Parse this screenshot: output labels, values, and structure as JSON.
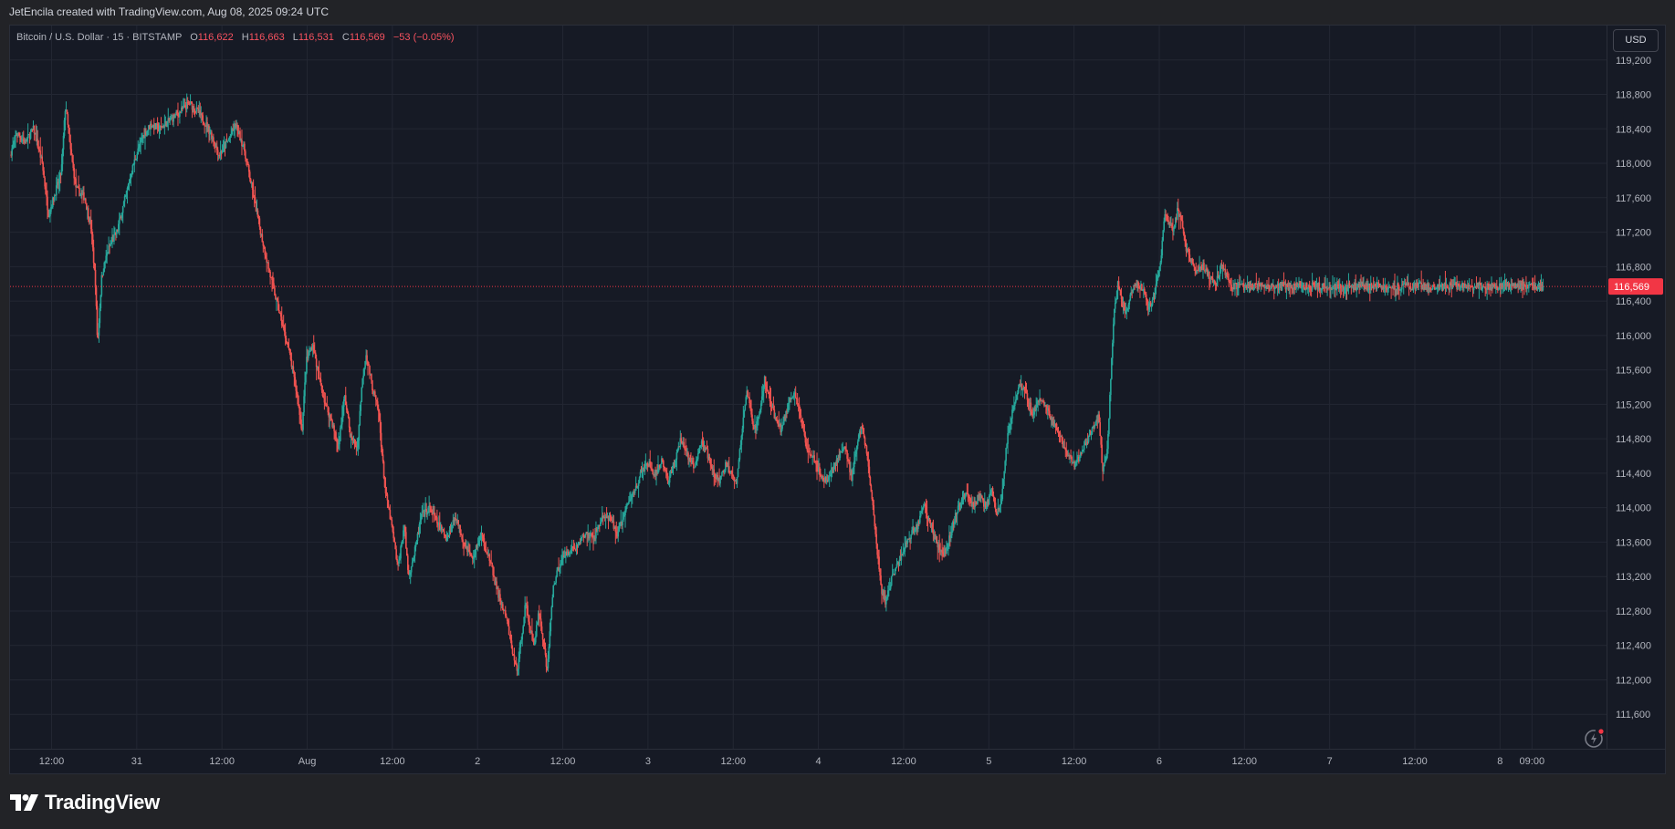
{
  "header": {
    "credit": "JetEncila created with TradingView.com, Aug 08, 2025 09:24 UTC"
  },
  "legend": {
    "symbol": "Bitcoin / U.S. Dollar · 15 · BITSTAMP",
    "open_label": "O",
    "open": "116,622",
    "high_label": "H",
    "high": "116,663",
    "low_label": "L",
    "low": "116,531",
    "close_label": "C",
    "close": "116,569",
    "change": "−53 (−0.05%)"
  },
  "currency_button": "USD",
  "brand": "TradingView",
  "colors": {
    "up": "#26a69a",
    "down": "#ef5350",
    "background": "#161a25",
    "grid": "#232733",
    "price_line": "#f23645"
  },
  "chart_data": {
    "type": "candlestick",
    "interval": "15",
    "exchange": "BITSTAMP",
    "ylim": [
      111200,
      119600
    ],
    "y_ticks": [
      111600,
      112000,
      112400,
      112800,
      113200,
      113600,
      114000,
      114400,
      114800,
      115200,
      115600,
      116000,
      116400,
      116800,
      117200,
      117600,
      118000,
      118400,
      118800,
      119200
    ],
    "y_tick_labels": [
      "111,600",
      "112,000",
      "112,400",
      "112,800",
      "113,200",
      "113,600",
      "114,000",
      "114,400",
      "114,800",
      "115,200",
      "115,600",
      "116,000",
      "116,400",
      "116,800",
      "117,200",
      "117,600",
      "118,000",
      "118,400",
      "118,800",
      "119,200"
    ],
    "current_price": 116569,
    "current_price_label": "116,569",
    "x_ticks": [
      {
        "label": "12:00",
        "t": 1.0
      },
      {
        "label": "31",
        "t": 5.0
      },
      {
        "label": "12:00",
        "t": 9.0
      },
      {
        "label": "Aug",
        "t": 13.0
      },
      {
        "label": "12:00",
        "t": 17.0
      },
      {
        "label": "2",
        "t": 21.0
      },
      {
        "label": "12:00",
        "t": 25.0
      },
      {
        "label": "3",
        "t": 29.0
      },
      {
        "label": "12:00",
        "t": 33.0
      },
      {
        "label": "4",
        "t": 37.0
      },
      {
        "label": "12:00",
        "t": 41.0
      },
      {
        "label": "5",
        "t": 45.0
      },
      {
        "label": "12:00",
        "t": 49.0
      },
      {
        "label": "6",
        "t": 53.0
      },
      {
        "label": "12:00",
        "t": 57.0
      },
      {
        "label": "7",
        "t": 61.0
      },
      {
        "label": "12:00",
        "t": 65.0
      },
      {
        "label": "8",
        "t": 69.0
      },
      {
        "label": "09:00",
        "t": 70.5
      }
    ],
    "x_range": [
      -0.95,
      74.0
    ],
    "end_t": 71.05,
    "price_path": [
      [
        -0.9,
        118100
      ],
      [
        -0.6,
        118350
      ],
      [
        -0.2,
        118250
      ],
      [
        0.2,
        118400
      ],
      [
        0.6,
        118000
      ],
      [
        0.9,
        117400
      ],
      [
        1.2,
        117650
      ],
      [
        1.5,
        117900
      ],
      [
        1.7,
        118700
      ],
      [
        1.9,
        118200
      ],
      [
        2.2,
        117700
      ],
      [
        2.6,
        117600
      ],
      [
        2.9,
        117250
      ],
      [
        3.1,
        116600
      ],
      [
        3.2,
        115900
      ],
      [
        3.4,
        116700
      ],
      [
        3.7,
        117000
      ],
      [
        4.1,
        117200
      ],
      [
        4.5,
        117600
      ],
      [
        4.9,
        118000
      ],
      [
        5.3,
        118300
      ],
      [
        5.7,
        118450
      ],
      [
        6.1,
        118400
      ],
      [
        6.6,
        118500
      ],
      [
        7.1,
        118600
      ],
      [
        7.5,
        118700
      ],
      [
        7.9,
        118600
      ],
      [
        8.3,
        118450
      ],
      [
        8.6,
        118300
      ],
      [
        8.9,
        118100
      ],
      [
        9.3,
        118250
      ],
      [
        9.7,
        118450
      ],
      [
        10.1,
        118150
      ],
      [
        10.5,
        117650
      ],
      [
        10.9,
        117150
      ],
      [
        11.3,
        116700
      ],
      [
        11.8,
        116200
      ],
      [
        12.2,
        115800
      ],
      [
        12.5,
        115400
      ],
      [
        12.8,
        114900
      ],
      [
        13.0,
        115700
      ],
      [
        13.3,
        115900
      ],
      [
        13.6,
        115500
      ],
      [
        13.9,
        115200
      ],
      [
        14.2,
        115000
      ],
      [
        14.5,
        114700
      ],
      [
        14.8,
        115300
      ],
      [
        15.1,
        114800
      ],
      [
        15.4,
        114700
      ],
      [
        15.6,
        115400
      ],
      [
        15.8,
        115800
      ],
      [
        16.1,
        115400
      ],
      [
        16.4,
        115100
      ],
      [
        16.7,
        114200
      ],
      [
        17.0,
        113800
      ],
      [
        17.3,
        113300
      ],
      [
        17.6,
        113800
      ],
      [
        17.8,
        113200
      ],
      [
        18.1,
        113500
      ],
      [
        18.4,
        113900
      ],
      [
        18.8,
        114000
      ],
      [
        19.2,
        113800
      ],
      [
        19.6,
        113650
      ],
      [
        20.0,
        113900
      ],
      [
        20.4,
        113600
      ],
      [
        20.8,
        113400
      ],
      [
        21.2,
        113700
      ],
      [
        21.6,
        113400
      ],
      [
        22.0,
        113000
      ],
      [
        22.4,
        112700
      ],
      [
        22.7,
        112300
      ],
      [
        22.9,
        112100
      ],
      [
        23.1,
        112500
      ],
      [
        23.3,
        112900
      ],
      [
        23.5,
        112600
      ],
      [
        23.7,
        112400
      ],
      [
        23.9,
        112800
      ],
      [
        24.1,
        112500
      ],
      [
        24.3,
        112100
      ],
      [
        24.6,
        113100
      ],
      [
        24.9,
        113350
      ],
      [
        25.3,
        113500
      ],
      [
        25.7,
        113550
      ],
      [
        26.1,
        113700
      ],
      [
        26.5,
        113650
      ],
      [
        26.9,
        113900
      ],
      [
        27.3,
        113850
      ],
      [
        27.6,
        113700
      ],
      [
        27.9,
        113900
      ],
      [
        28.2,
        114100
      ],
      [
        28.5,
        114250
      ],
      [
        28.8,
        114450
      ],
      [
        29.1,
        114500
      ],
      [
        29.4,
        114350
      ],
      [
        29.7,
        114550
      ],
      [
        30.0,
        114300
      ],
      [
        30.3,
        114550
      ],
      [
        30.6,
        114800
      ],
      [
        30.9,
        114600
      ],
      [
        31.2,
        114450
      ],
      [
        31.5,
        114750
      ],
      [
        31.8,
        114650
      ],
      [
        32.1,
        114400
      ],
      [
        32.4,
        114300
      ],
      [
        32.7,
        114500
      ],
      [
        33.0,
        114400
      ],
      [
        33.2,
        114300
      ],
      [
        33.5,
        115000
      ],
      [
        33.7,
        115350
      ],
      [
        34.0,
        114900
      ],
      [
        34.3,
        115100
      ],
      [
        34.5,
        115500
      ],
      [
        34.7,
        115300
      ],
      [
        35.0,
        115050
      ],
      [
        35.3,
        114900
      ],
      [
        35.6,
        115200
      ],
      [
        35.9,
        115350
      ],
      [
        36.2,
        115050
      ],
      [
        36.5,
        114700
      ],
      [
        36.8,
        114600
      ],
      [
        37.1,
        114400
      ],
      [
        37.4,
        114300
      ],
      [
        37.7,
        114450
      ],
      [
        38.0,
        114600
      ],
      [
        38.3,
        114700
      ],
      [
        38.6,
        114350
      ],
      [
        38.9,
        114800
      ],
      [
        39.1,
        114950
      ],
      [
        39.3,
        114650
      ],
      [
        39.6,
        114000
      ],
      [
        39.8,
        113500
      ],
      [
        40.0,
        113050
      ],
      [
        40.2,
        112900
      ],
      [
        40.5,
        113200
      ],
      [
        40.8,
        113350
      ],
      [
        41.1,
        113550
      ],
      [
        41.4,
        113700
      ],
      [
        41.7,
        113800
      ],
      [
        42.0,
        114050
      ],
      [
        42.3,
        113800
      ],
      [
        42.6,
        113600
      ],
      [
        42.9,
        113450
      ],
      [
        43.1,
        113550
      ],
      [
        43.4,
        113850
      ],
      [
        43.7,
        114050
      ],
      [
        44.0,
        114200
      ],
      [
        44.3,
        114000
      ],
      [
        44.6,
        114150
      ],
      [
        44.9,
        114000
      ],
      [
        45.2,
        114200
      ],
      [
        45.4,
        113950
      ],
      [
        45.6,
        114000
      ],
      [
        45.9,
        114800
      ],
      [
        46.2,
        115200
      ],
      [
        46.5,
        115450
      ],
      [
        46.8,
        115300
      ],
      [
        47.1,
        115100
      ],
      [
        47.4,
        115250
      ],
      [
        47.7,
        115200
      ],
      [
        48.0,
        115000
      ],
      [
        48.3,
        114900
      ],
      [
        48.6,
        114650
      ],
      [
        48.9,
        114550
      ],
      [
        49.1,
        114500
      ],
      [
        49.4,
        114650
      ],
      [
        49.7,
        114800
      ],
      [
        50.0,
        114950
      ],
      [
        50.2,
        115050
      ],
      [
        50.4,
        114400
      ],
      [
        50.6,
        114650
      ],
      [
        50.9,
        116200
      ],
      [
        51.1,
        116600
      ],
      [
        51.3,
        116400
      ],
      [
        51.5,
        116250
      ],
      [
        51.7,
        116500
      ],
      [
        52.0,
        116600
      ],
      [
        52.3,
        116550
      ],
      [
        52.5,
        116300
      ],
      [
        52.8,
        116450
      ],
      [
        53.1,
        116850
      ],
      [
        53.3,
        117400
      ],
      [
        53.5,
        117300
      ],
      [
        53.7,
        117200
      ],
      [
        53.9,
        117450
      ],
      [
        54.1,
        117300
      ],
      [
        54.3,
        117000
      ],
      [
        54.5,
        116900
      ],
      [
        54.8,
        116750
      ],
      [
        55.1,
        116800
      ],
      [
        55.4,
        116700
      ],
      [
        55.7,
        116600
      ],
      [
        56.0,
        116850
      ],
      [
        56.2,
        116700
      ],
      [
        56.5,
        116569
      ]
    ]
  }
}
